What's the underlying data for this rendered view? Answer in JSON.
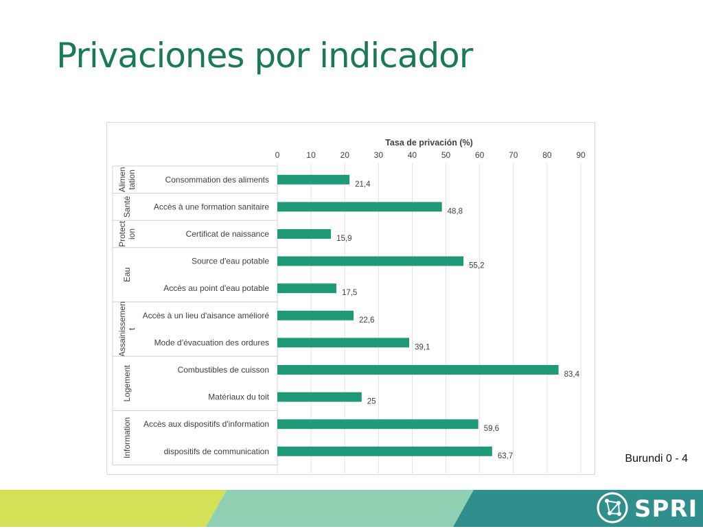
{
  "slide": {
    "title": "Privaciones por indicador",
    "footnote": "Burundi 0 - 4",
    "logo_text": "SPRI"
  },
  "colors": {
    "title": "#1a7a55",
    "bar": "#1f9a78",
    "band_lime": "#d4e157",
    "band_mint": "#8fd0b2",
    "band_teal": "#2f8f8c"
  },
  "chart_data": {
    "type": "bar",
    "orientation": "horizontal",
    "title": "",
    "xlabel": "Tasa de privación (%)",
    "xaxis_position": "top",
    "xlim": [
      0,
      90
    ],
    "xticks": [
      0,
      10,
      20,
      30,
      40,
      50,
      60,
      70,
      80,
      90
    ],
    "grid": true,
    "groups": [
      {
        "name": "Alimen tation",
        "categories": [
          "Consommation des aliments"
        ]
      },
      {
        "name": "Santé",
        "categories": [
          "Accès à une formation sanitaire"
        ]
      },
      {
        "name": "Protect ion",
        "categories": [
          "Certificat de naissance"
        ]
      },
      {
        "name": "Eau",
        "categories": [
          "Source d'eau potable",
          "Accès au point d'eau potable"
        ]
      },
      {
        "name": "Assainissemen t",
        "categories": [
          "Accès à un lieu d'aisance amélioré",
          "Mode d’évacuation des ordures"
        ]
      },
      {
        "name": "Logement",
        "categories": [
          "Combustibles de cuisson",
          "Matériaux du toit"
        ]
      },
      {
        "name": "Information",
        "categories": [
          "Accès aux dispositifs d'information",
          "dispositifs de communication"
        ]
      }
    ],
    "categories": [
      "Consommation des aliments",
      "Accès à une formation sanitaire",
      "Certificat de naissance",
      "Source d'eau potable",
      "Accès au point d'eau potable",
      "Accès à un lieu d'aisance amélioré",
      "Mode d’évacuation des ordures",
      "Combustibles de cuisson",
      "Matériaux du toit",
      "Accès aux dispositifs d'information",
      "dispositifs de communication"
    ],
    "values": [
      21.4,
      48.8,
      15.9,
      55.2,
      17.5,
      22.6,
      39.1,
      83.4,
      25,
      59.6,
      63.7
    ],
    "value_labels": [
      "21,4",
      "48,8",
      "15,9",
      "55,2",
      "17,5",
      "22,6",
      "39,1",
      "83,4",
      "25",
      "59,6",
      "63,7"
    ]
  }
}
